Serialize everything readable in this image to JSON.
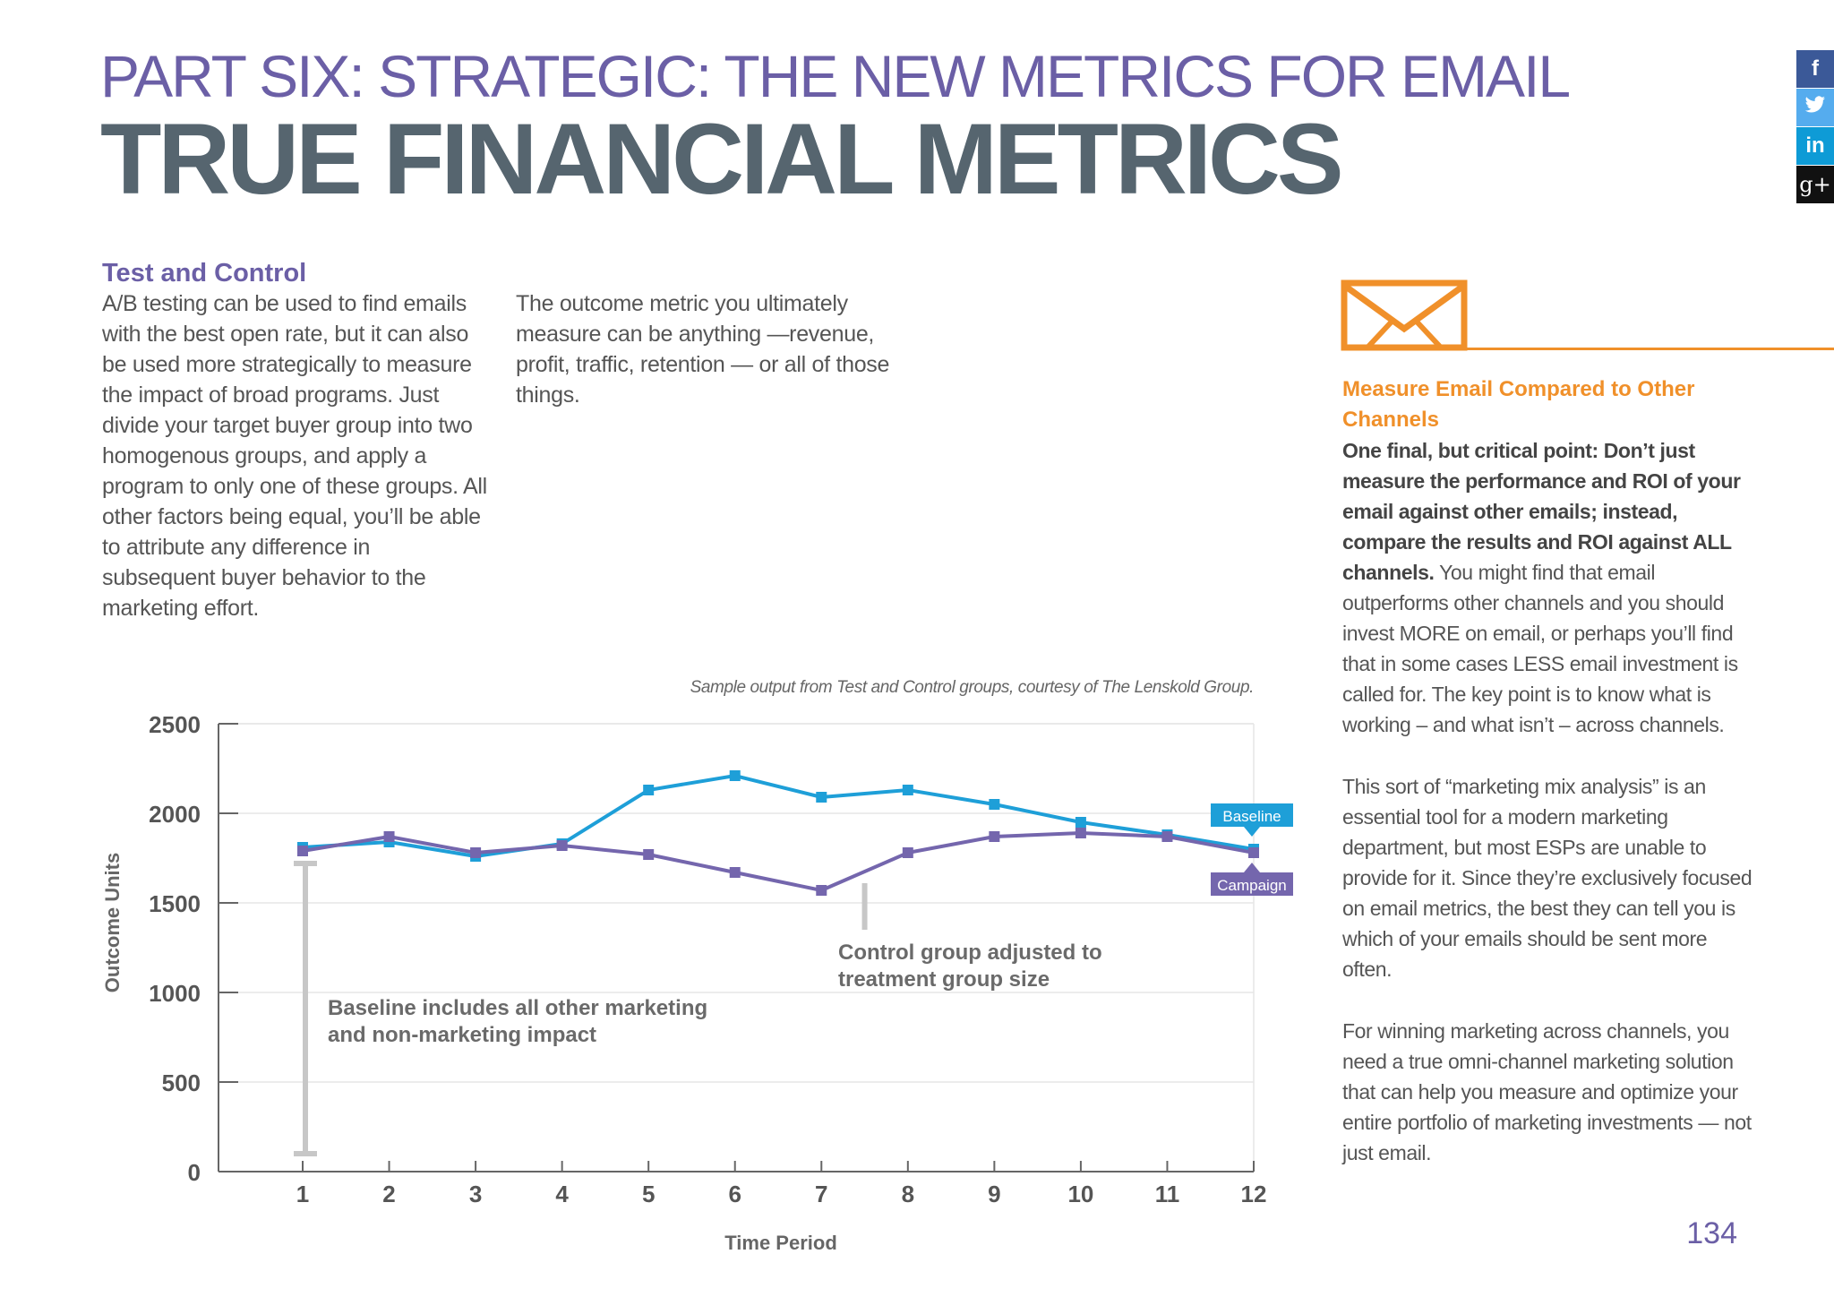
{
  "header": {
    "part_title": "PART SIX: STRATEGIC: THE NEW METRICS FOR EMAIL",
    "main_title": "TRUE FINANCIAL METRICS"
  },
  "share": {
    "items": [
      {
        "icon": "facebook-icon",
        "glyph": "f",
        "color": "#3b5998"
      },
      {
        "icon": "twitter-icon",
        "glyph": "🐦",
        "color": "#55acee"
      },
      {
        "icon": "linkedin-icon",
        "glyph": "in",
        "color": "#0e9bd6"
      },
      {
        "icon": "google-plus-icon",
        "glyph": "g+",
        "color": "#111111"
      }
    ]
  },
  "section1": {
    "heading": "Test and Control",
    "col1": "A/B testing can be used to find emails with the best open rate, but it can also be used more strategically to measure the impact of broad programs. Just divide your target buyer group into two homogenous groups, and apply a program to only one of these groups.  All other factors being equal, you’ll be able to attribute any difference in subsequent buyer behavior to the marketing effort.",
    "col2": "The outcome metric you ultimately measure can be anything —revenue, profit, traffic, retention — or all of those things."
  },
  "caption": "Sample output from Test and Control groups, courtesy of The Lenskold Group.",
  "sidebar": {
    "icon": "envelope-icon",
    "heading": "Measure Email Compared to Other Channels",
    "p1_bold": "One final, but critical point: Don’t just measure the performance and ROI of your email against other emails; instead, compare the results and ROI against ALL channels.",
    "p1_rest": " You might find that email outperforms other channels and you should invest MORE on email, or perhaps you’ll find that in some cases LESS email investment is called for. The key point is to know what is working – and what isn’t – across channels.",
    "p2": "This sort of “marketing mix analysis” is an essential tool for a modern marketing department, but most ESPs are unable to provide for it. Since they’re exclusively focused on email metrics, the best they can tell you is which of your emails should be sent more often.",
    "p3": "For winning marketing across channels, you need a true omni-channel marketing solution that can help you measure and optimize your entire portfolio of marketing investments — not just email."
  },
  "page_number": "134",
  "colors": {
    "purple": "#6b5fa6",
    "baseline": "#1e9fd8",
    "campaign": "#7466ad",
    "orange": "#f0902a",
    "annotation_gray": "#c7c7c7"
  },
  "chart_data": {
    "type": "line",
    "xlabel": "Time Period",
    "ylabel": "Outcome Units",
    "x": [
      1,
      2,
      3,
      4,
      5,
      6,
      7,
      8,
      9,
      10,
      11,
      12
    ],
    "ylim": [
      0,
      2500
    ],
    "yticks": [
      0,
      500,
      1000,
      1500,
      2000,
      2500
    ],
    "grid": true,
    "series": [
      {
        "name": "Baseline",
        "color": "#1e9fd8",
        "values": [
          1810,
          1840,
          1760,
          1830,
          2130,
          2210,
          2090,
          2130,
          2050,
          1950,
          1880,
          1800
        ]
      },
      {
        "name": "Campaign",
        "color": "#7466ad",
        "values": [
          1790,
          1870,
          1780,
          1820,
          1770,
          1670,
          1570,
          1780,
          1870,
          1890,
          1870,
          1780
        ]
      }
    ],
    "annotations": [
      {
        "text": "Baseline includes all other marketing and non-marketing impact",
        "x": 1,
        "y_from": 100,
        "y_to": 1720
      },
      {
        "text": "Control group adjusted to treatment group size",
        "x": 7.5,
        "y_from": 1350,
        "y_to": 1610
      }
    ]
  }
}
